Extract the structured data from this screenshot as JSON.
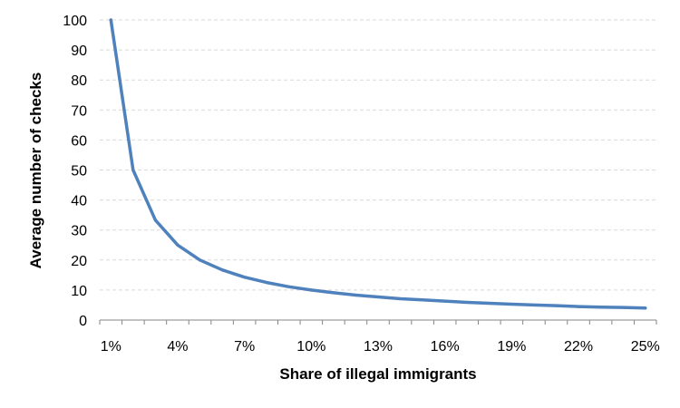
{
  "chart_data": {
    "type": "line",
    "title": "",
    "xlabel": "Share of illegal immigrants",
    "ylabel": "Average number of checks",
    "x": [
      "1%",
      "2%",
      "3%",
      "4%",
      "5%",
      "6%",
      "7%",
      "8%",
      "9%",
      "10%",
      "11%",
      "12%",
      "13%",
      "14%",
      "15%",
      "16%",
      "17%",
      "18%",
      "19%",
      "20%",
      "21%",
      "22%",
      "23%",
      "24%",
      "25%"
    ],
    "x_tick_labels": [
      "1%",
      "4%",
      "7%",
      "10%",
      "13%",
      "16%",
      "19%",
      "22%",
      "25%"
    ],
    "series": [
      {
        "values": [
          100,
          50,
          33.3,
          25,
          20,
          16.7,
          14.3,
          12.5,
          11.1,
          10,
          9.1,
          8.3,
          7.7,
          7.1,
          6.7,
          6.3,
          5.9,
          5.6,
          5.3,
          5,
          4.8,
          4.5,
          4.3,
          4.2,
          4
        ],
        "color": "#4f81bd"
      }
    ],
    "ylim": [
      0,
      100
    ],
    "y_ticks": [
      "0",
      "10",
      "20",
      "30",
      "40",
      "50",
      "60",
      "70",
      "80",
      "90",
      "100"
    ],
    "grid": "horizontal dashed",
    "legend": "none"
  }
}
